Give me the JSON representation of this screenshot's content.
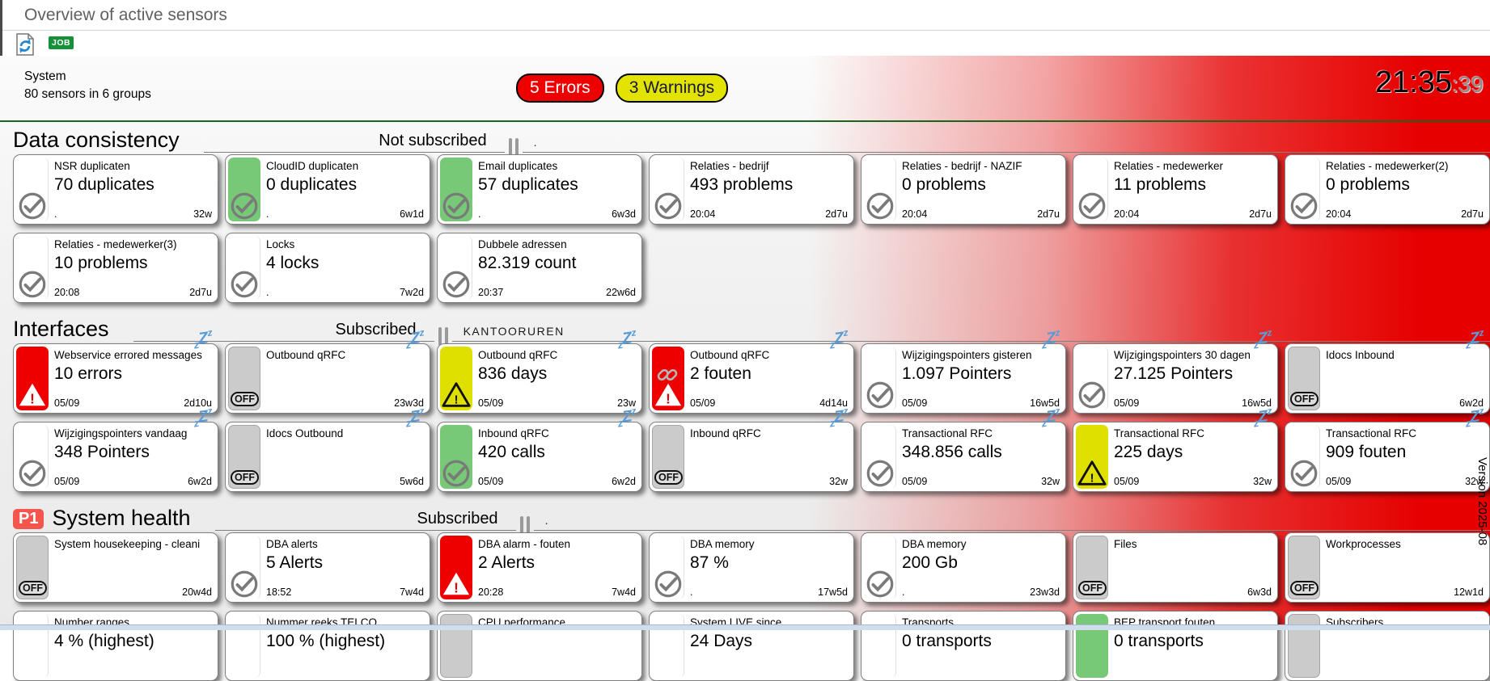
{
  "title_bar": {
    "title": "Overview of active sensors"
  },
  "toolbar": {
    "refresh_icon": "refresh-icon",
    "job_label": "JOB"
  },
  "system": {
    "name": "System",
    "subtitle": "80 sensors in 6 groups",
    "errors_badge": "5 Errors",
    "warnings_badge": "3 Warnings",
    "clock_hm": "21:35",
    "clock_s": ":39"
  },
  "icons": {
    "off_label": "OFF",
    "snooze_letters": [
      "z",
      "Z",
      "z"
    ]
  },
  "colors": {
    "error_red": "#ee0000",
    "warning_yellow": "#e0e000",
    "ok_green": "#77c877",
    "off_gray": "#cbcbcb",
    "snooze_blue": "#5b9bd5",
    "divider_green": "#1c641c",
    "alert_gradient_red": "#e60000",
    "job_badge_green": "#17903a",
    "priority_badge_red": "#f4564e"
  },
  "version_label": "Version 2025-08",
  "sections": [
    {
      "title": "Data consistency",
      "priority_badge": "",
      "subscription_label": "Not subscribed",
      "subscription_extra": ".",
      "rows": [
        [
          {
            "title": "NSR duplicaten",
            "value": "70 duplicates",
            "time": ".",
            "age": "32w",
            "strip": "white",
            "icon": "check",
            "snooze": false
          },
          {
            "title": "CloudID duplicaten",
            "value": "0 duplicates",
            "time": ".",
            "age": "6w1d",
            "strip": "green",
            "icon": "check",
            "snooze": false
          },
          {
            "title": "Email duplicates",
            "value": "57 duplicates",
            "time": ".",
            "age": "6w3d",
            "strip": "green",
            "icon": "check",
            "snooze": false
          },
          {
            "title": "Relaties - bedrijf",
            "value": "493 problems",
            "time": "20:04",
            "age": "2d7u",
            "strip": "white",
            "icon": "check",
            "snooze": false
          },
          {
            "title": "Relaties - bedrijf - NAZIF",
            "value": "0 problems",
            "time": "20:04",
            "age": "2d7u",
            "strip": "white",
            "icon": "check",
            "snooze": false
          },
          {
            "title": "Relaties - medewerker",
            "value": "11 problems",
            "time": "20:04",
            "age": "2d7u",
            "strip": "white",
            "icon": "check",
            "snooze": false
          },
          {
            "title": "Relaties - medewerker(2)",
            "value": "0 problems",
            "time": "20:04",
            "age": "2d7u",
            "strip": "white",
            "icon": "check",
            "snooze": false
          }
        ],
        [
          {
            "title": "Relaties - medewerker(3)",
            "value": "10 problems",
            "time": "20:08",
            "age": "2d7u",
            "strip": "white",
            "icon": "check",
            "snooze": false
          },
          {
            "title": "Locks",
            "value": "4 locks",
            "time": ".",
            "age": "7w2d",
            "strip": "white",
            "icon": "check",
            "snooze": false
          },
          {
            "title": "Dubbele adressen",
            "value": "82.319 count",
            "time": "20:37",
            "age": "22w6d",
            "strip": "white",
            "icon": "check",
            "snooze": false
          }
        ]
      ]
    },
    {
      "title": "Interfaces",
      "priority_badge": "",
      "subscription_label": "Subscribed",
      "subscription_extra": "KANTOORUREN",
      "rows": [
        [
          {
            "title": "Webservice errored messages",
            "value": "10 errors",
            "time": "05/09",
            "age": "2d10u",
            "strip": "red",
            "icon": "warn-red",
            "snooze": true
          },
          {
            "title": "Outbound qRFC",
            "value": "",
            "time": "",
            "age": "23w3d",
            "strip": "gray",
            "icon": "off",
            "snooze": true
          },
          {
            "title": "Outbound qRFC",
            "value": "836 days",
            "time": "05/09",
            "age": "23w",
            "strip": "yellow",
            "icon": "warn-yellow",
            "snooze": true
          },
          {
            "title": "Outbound qRFC",
            "value": "2 fouten",
            "time": "05/09",
            "age": "4d14u",
            "strip": "red",
            "icon": "chain-warn",
            "snooze": true
          },
          {
            "title": "Wijzigingspointers gisteren",
            "value": "1.097 Pointers",
            "time": "05/09",
            "age": "16w5d",
            "strip": "white",
            "icon": "check",
            "snooze": true
          },
          {
            "title": "Wijzigingspointers 30 dagen",
            "value": "27.125 Pointers",
            "time": "05/09",
            "age": "16w5d",
            "strip": "white",
            "icon": "check",
            "snooze": true
          },
          {
            "title": "Idocs Inbound",
            "value": "",
            "time": "",
            "age": "6w2d",
            "strip": "gray",
            "icon": "off",
            "snooze": true
          }
        ],
        [
          {
            "title": "Wijzigingspointers vandaag",
            "value": "348 Pointers",
            "time": "05/09",
            "age": "6w2d",
            "strip": "white",
            "icon": "check",
            "snooze": true
          },
          {
            "title": "Idocs Outbound",
            "value": "",
            "time": "",
            "age": "5w6d",
            "strip": "gray",
            "icon": "off",
            "snooze": true
          },
          {
            "title": "Inbound qRFC",
            "value": "420 calls",
            "time": "05/09",
            "age": "6w2d",
            "strip": "green",
            "icon": "check",
            "snooze": true
          },
          {
            "title": "Inbound qRFC",
            "value": "",
            "time": "",
            "age": "32w",
            "strip": "gray",
            "icon": "off",
            "snooze": true
          },
          {
            "title": "Transactional RFC",
            "value": "348.856 calls",
            "time": "05/09",
            "age": "32w",
            "strip": "white",
            "icon": "check",
            "snooze": true
          },
          {
            "title": "Transactional RFC",
            "value": "225 days",
            "time": "05/09",
            "age": "32w",
            "strip": "yellow",
            "icon": "warn-yellow",
            "snooze": true
          },
          {
            "title": "Transactional RFC",
            "value": "909 fouten",
            "time": "05/09",
            "age": "32w",
            "strip": "white",
            "icon": "check",
            "snooze": true
          }
        ]
      ]
    },
    {
      "title": "System health",
      "priority_badge": "P1",
      "subscription_label": "Subscribed",
      "subscription_extra": ".",
      "rows": [
        [
          {
            "title": "System housekeeping - cleani",
            "value": "",
            "time": "",
            "age": "20w4d",
            "strip": "gray",
            "icon": "off",
            "snooze": false
          },
          {
            "title": "DBA alerts",
            "value": "5 Alerts",
            "time": "18:52",
            "age": "7w4d",
            "strip": "white",
            "icon": "check",
            "snooze": false
          },
          {
            "title": "DBA alarm - fouten",
            "value": "2 Alerts",
            "time": "20:28",
            "age": "7w4d",
            "strip": "red",
            "icon": "warn-red",
            "snooze": false
          },
          {
            "title": "DBA memory",
            "value": "87 %",
            "time": ".",
            "age": "17w5d",
            "strip": "white",
            "icon": "check",
            "snooze": false
          },
          {
            "title": "DBA memory",
            "value": "200 Gb",
            "time": ".",
            "age": "23w3d",
            "strip": "white",
            "icon": "check",
            "snooze": false
          },
          {
            "title": "Files",
            "value": "",
            "time": "",
            "age": "6w3d",
            "strip": "gray",
            "icon": "off",
            "snooze": false
          },
          {
            "title": "Workprocesses",
            "value": "",
            "time": "",
            "age": "12w1d",
            "strip": "gray",
            "icon": "off",
            "snooze": false
          }
        ],
        [
          {
            "title": "Number ranges",
            "value": "4 % (highest)",
            "time": "",
            "age": "",
            "strip": "white",
            "icon": "none",
            "snooze": false
          },
          {
            "title": "Nummer reeks TELCO",
            "value": "100 % (highest)",
            "time": "",
            "age": "",
            "strip": "white",
            "icon": "none",
            "snooze": false
          },
          {
            "title": "CPU performance",
            "value": "",
            "time": "",
            "age": "",
            "strip": "gray",
            "icon": "none",
            "snooze": false
          },
          {
            "title": "System LIVE since",
            "value": "24 Days",
            "time": "",
            "age": "",
            "strip": "white",
            "icon": "none",
            "snooze": false
          },
          {
            "title": "Transports",
            "value": "0 transports",
            "time": "",
            "age": "",
            "strip": "white",
            "icon": "none",
            "snooze": false
          },
          {
            "title": "BEP transport fouten",
            "value": "0 transports",
            "time": "",
            "age": "",
            "strip": "green",
            "icon": "none",
            "snooze": false
          },
          {
            "title": "Subscribers",
            "value": "",
            "time": "",
            "age": "",
            "strip": "gray",
            "icon": "none",
            "snooze": false
          }
        ]
      ]
    }
  ]
}
